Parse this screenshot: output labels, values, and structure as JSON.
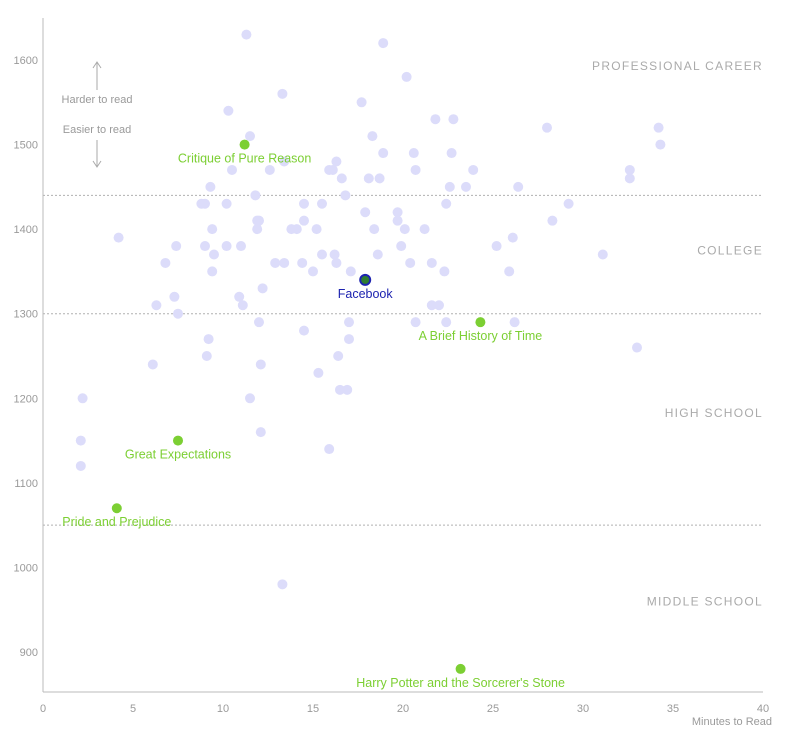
{
  "chart_data": {
    "type": "scatter",
    "title": "",
    "xlabel": "Minutes to Read",
    "ylabel": "",
    "xlim": [
      0,
      40
    ],
    "ylim": [
      850,
      1660
    ],
    "x_ticks": [
      0,
      5,
      10,
      15,
      20,
      25,
      30,
      35,
      40
    ],
    "y_ticks": [
      900,
      1000,
      1100,
      1200,
      1300,
      1400,
      1500,
      1600
    ],
    "thresholds": [
      1050,
      1300,
      1440
    ],
    "bands": [
      {
        "label": "PROFESSIONAL CAREER",
        "y": 1588
      },
      {
        "label": "COLLEGE",
        "y": 1370
      },
      {
        "label": "HIGH SCHOOL",
        "y": 1178
      },
      {
        "label": "MIDDLE SCHOOL",
        "y": 955
      }
    ],
    "hints": {
      "harder": "Harder to read",
      "easier": "Easier to read"
    },
    "colors": {
      "background_points": "#dcdcfa",
      "books": "#7ccf33",
      "facebook_fill": "#2e7d32",
      "facebook_ring": "#1d23b0",
      "gridline": "#b0b0b0",
      "axis": "#bbbbbb"
    },
    "highlighted": [
      {
        "name": "Critique of Pure Reason",
        "x": 11.2,
        "y": 1500,
        "kind": "book"
      },
      {
        "name": "Facebook",
        "x": 17.9,
        "y": 1340,
        "kind": "facebook"
      },
      {
        "name": "A Brief History of Time",
        "x": 24.3,
        "y": 1290,
        "kind": "book"
      },
      {
        "name": "Great Expectations",
        "x": 7.5,
        "y": 1150,
        "kind": "book"
      },
      {
        "name": "Pride and Prejudice",
        "x": 4.1,
        "y": 1070,
        "kind": "book"
      },
      {
        "name": "Harry Potter and the Sorcerer's Stone",
        "x": 23.2,
        "y": 880,
        "kind": "book"
      }
    ],
    "points": [
      [
        2.1,
        1120
      ],
      [
        2.1,
        1150
      ],
      [
        2.2,
        1200
      ],
      [
        4.2,
        1390
      ],
      [
        6.1,
        1240
      ],
      [
        6.3,
        1310
      ],
      [
        6.8,
        1360
      ],
      [
        7.3,
        1320
      ],
      [
        7.4,
        1380
      ],
      [
        7.5,
        1300
      ],
      [
        8.8,
        1430
      ],
      [
        9.0,
        1380
      ],
      [
        9.0,
        1430
      ],
      [
        9.1,
        1250
      ],
      [
        9.2,
        1270
      ],
      [
        9.3,
        1450
      ],
      [
        9.4,
        1400
      ],
      [
        9.4,
        1350
      ],
      [
        9.5,
        1370
      ],
      [
        10.2,
        1430
      ],
      [
        10.3,
        1540
      ],
      [
        10.5,
        1470
      ],
      [
        10.2,
        1380
      ],
      [
        10.9,
        1320
      ],
      [
        11.0,
        1380
      ],
      [
        11.1,
        1310
      ],
      [
        11.3,
        1630
      ],
      [
        11.5,
        1510
      ],
      [
        11.5,
        1200
      ],
      [
        11.8,
        1440
      ],
      [
        11.9,
        1410
      ],
      [
        11.9,
        1400
      ],
      [
        12.0,
        1410
      ],
      [
        12.0,
        1290
      ],
      [
        12.1,
        1240
      ],
      [
        12.1,
        1160
      ],
      [
        12.2,
        1330
      ],
      [
        12.6,
        1470
      ],
      [
        12.9,
        1360
      ],
      [
        13.3,
        1560
      ],
      [
        13.4,
        1480
      ],
      [
        13.4,
        1360
      ],
      [
        13.3,
        980
      ],
      [
        13.8,
        1400
      ],
      [
        14.1,
        1400
      ],
      [
        14.4,
        1360
      ],
      [
        14.5,
        1280
      ],
      [
        14.5,
        1410
      ],
      [
        14.5,
        1430
      ],
      [
        15.0,
        1350
      ],
      [
        15.2,
        1400
      ],
      [
        15.3,
        1230
      ],
      [
        15.5,
        1430
      ],
      [
        15.5,
        1370
      ],
      [
        15.9,
        1140
      ],
      [
        15.9,
        1470
      ],
      [
        16.1,
        1470
      ],
      [
        16.2,
        1370
      ],
      [
        16.3,
        1360
      ],
      [
        16.3,
        1480
      ],
      [
        16.4,
        1250
      ],
      [
        16.5,
        1210
      ],
      [
        16.6,
        1460
      ],
      [
        16.8,
        1440
      ],
      [
        16.9,
        1210
      ],
      [
        17.0,
        1290
      ],
      [
        17.0,
        1270
      ],
      [
        17.1,
        1350
      ],
      [
        17.7,
        1550
      ],
      [
        17.9,
        1420
      ],
      [
        18.1,
        1460
      ],
      [
        18.3,
        1510
      ],
      [
        18.4,
        1400
      ],
      [
        18.6,
        1370
      ],
      [
        18.7,
        1460
      ],
      [
        18.9,
        1620
      ],
      [
        18.9,
        1490
      ],
      [
        19.7,
        1420
      ],
      [
        19.7,
        1410
      ],
      [
        19.9,
        1380
      ],
      [
        20.1,
        1400
      ],
      [
        20.2,
        1580
      ],
      [
        20.4,
        1360
      ],
      [
        20.6,
        1490
      ],
      [
        20.7,
        1470
      ],
      [
        20.7,
        1290
      ],
      [
        21.2,
        1400
      ],
      [
        21.6,
        1360
      ],
      [
        21.6,
        1310
      ],
      [
        21.8,
        1530
      ],
      [
        22.0,
        1310
      ],
      [
        22.3,
        1350
      ],
      [
        22.4,
        1290
      ],
      [
        22.4,
        1430
      ],
      [
        22.6,
        1450
      ],
      [
        22.7,
        1490
      ],
      [
        22.8,
        1530
      ],
      [
        23.5,
        1450
      ],
      [
        23.9,
        1470
      ],
      [
        25.2,
        1380
      ],
      [
        25.9,
        1350
      ],
      [
        26.1,
        1390
      ],
      [
        26.2,
        1290
      ],
      [
        26.4,
        1450
      ],
      [
        28.0,
        1520
      ],
      [
        28.3,
        1410
      ],
      [
        29.2,
        1430
      ],
      [
        31.1,
        1370
      ],
      [
        32.6,
        1470
      ],
      [
        32.6,
        1460
      ],
      [
        33.0,
        1260
      ],
      [
        34.2,
        1520
      ],
      [
        34.3,
        1500
      ]
    ]
  }
}
